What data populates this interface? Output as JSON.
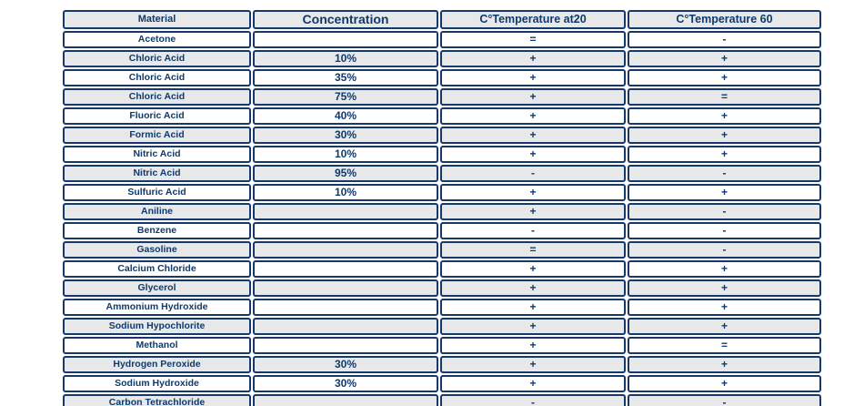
{
  "chart_data": {
    "type": "table",
    "columns": [
      "Material",
      "Concentration",
      "C°Temperature at20",
      "C°Temperature 60"
    ],
    "rows": [
      [
        "Acetone",
        "",
        "=",
        "-"
      ],
      [
        "Chloric Acid",
        "10%",
        "+",
        "+"
      ],
      [
        "Chloric Acid",
        "35%",
        "+",
        "+"
      ],
      [
        "Chloric Acid",
        "75%",
        "+",
        "="
      ],
      [
        "Fluoric Acid",
        "40%",
        "+",
        "+"
      ],
      [
        "Formic Acid",
        "30%",
        "+",
        "+"
      ],
      [
        "Nitric Acid",
        "10%",
        "+",
        "+"
      ],
      [
        "Nitric Acid",
        "95%",
        "-",
        "-"
      ],
      [
        "Sulfuric Acid",
        "10%",
        "+",
        "+"
      ],
      [
        "Aniline",
        "",
        "+",
        "-"
      ],
      [
        "Benzene",
        "",
        "-",
        "-"
      ],
      [
        "Gasoline",
        "",
        "=",
        "-"
      ],
      [
        "Calcium Chloride",
        "",
        "+",
        "+"
      ],
      [
        "Glycerol",
        "",
        "+",
        "+"
      ],
      [
        "Ammonium Hydroxide",
        "",
        "+",
        "+"
      ],
      [
        "Sodium Hypochlorite",
        "",
        "+",
        "+"
      ],
      [
        "Methanol",
        "",
        "+",
        "="
      ],
      [
        "Hydrogen Peroxide",
        "30%",
        "+",
        "+"
      ],
      [
        "Sodium Hydroxide",
        "30%",
        "+",
        "+"
      ],
      [
        "Carbon Tetrachloride",
        "",
        "-",
        "-"
      ]
    ]
  },
  "colors": {
    "border": "#16396b",
    "text": "#0e3a6d",
    "row_white": "#ffffff",
    "row_gray": "#e8e8e8",
    "page_background": "#ffffff"
  }
}
